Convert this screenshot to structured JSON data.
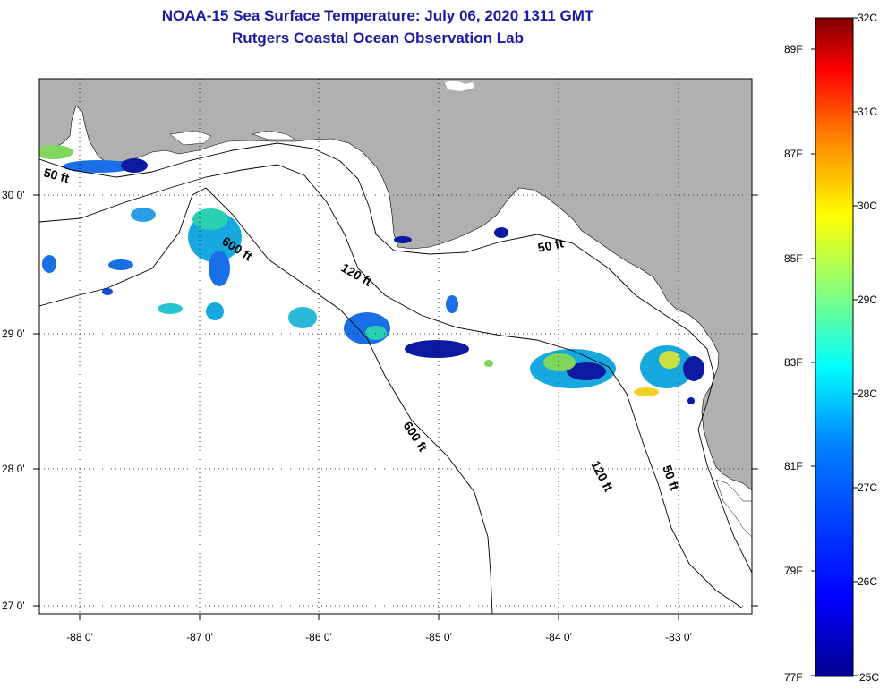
{
  "title": "NOAA-15 Sea Surface Temperature:  July 06, 2020 1311 GMT",
  "subtitle": "Rutgers Coastal Ocean Observation Lab",
  "map": {
    "lon_ticks": [
      "-88 0'",
      "-87 0'",
      "-86 0'",
      "-85 0'",
      "-84 0'",
      "-83 0'"
    ],
    "lat_ticks": [
      "30 0'",
      "29 0'",
      "28 0'",
      "27 0'"
    ],
    "contours": [
      "50 ft",
      "600 ft",
      "120 ft",
      "50 ft",
      "600 ft",
      "120 ft",
      "50 ft"
    ],
    "colors": {
      "land": "#b0b0b0",
      "ocean": "#ffffff",
      "cold": "#0b1aa0",
      "warm": "#7fd65c"
    }
  },
  "colorbar": {
    "celsius": [
      "32C",
      "31C",
      "30C",
      "29C",
      "28C",
      "27C",
      "26C",
      "25C"
    ],
    "fahrenheit": [
      "89F",
      "87F",
      "85F",
      "83F",
      "81F",
      "79F",
      "77F"
    ],
    "colormap": [
      "#00008f",
      "#0000ff",
      "#0080ff",
      "#00ffff",
      "#80ff80",
      "#ffff00",
      "#ff8000",
      "#ff0000",
      "#800000"
    ]
  }
}
